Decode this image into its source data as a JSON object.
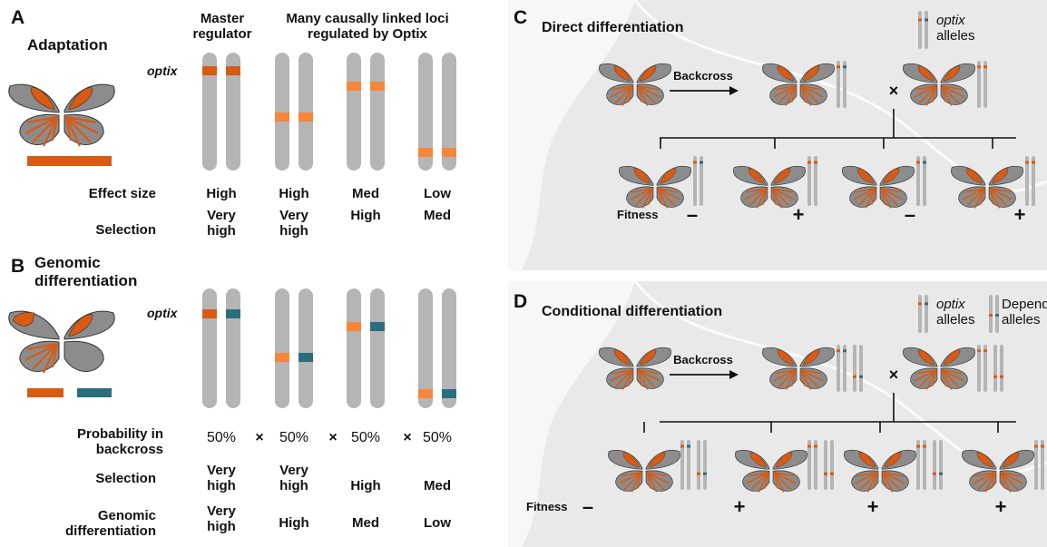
{
  "panel_a": {
    "label": "A",
    "title": "Adaptation",
    "header_master": "Master regulator",
    "header_many": "Many causally linked loci regulated by Optix",
    "gene": "optix",
    "rows": [
      {
        "label": "Effect size",
        "values": [
          "High",
          "High",
          "Med",
          "Low"
        ]
      },
      {
        "label": "Selection",
        "values": [
          "Very high",
          "Very high",
          "High",
          "Med"
        ]
      }
    ]
  },
  "panel_b": {
    "label": "B",
    "title": "Genomic differentiation",
    "gene": "optix",
    "probability_label": "Probability in backcross",
    "probabilities": [
      "50%",
      "50%",
      "50%",
      "50%"
    ],
    "times": [
      "×",
      "×",
      "×"
    ],
    "rows": [
      {
        "label": "Selection",
        "values": [
          "Very high",
          "Very high",
          "High",
          "Med"
        ]
      },
      {
        "label": "Genomic differentiation",
        "values": [
          "Very high",
          "High",
          "Med",
          "Low"
        ]
      }
    ]
  },
  "panel_c": {
    "label": "C",
    "title": "Direct differentiation",
    "legend": [
      {
        "gene": "optix",
        "text": "alleles"
      }
    ],
    "arrow": "Backcross",
    "cross": "×",
    "fitness_label": "Fitness",
    "fitness": [
      "–",
      "+",
      "–",
      "+"
    ]
  },
  "panel_d": {
    "label": "D",
    "title": "Conditional differentiation",
    "legend": [
      {
        "gene": "optix",
        "text": "alleles"
      },
      {
        "text": "Dependent alleles"
      }
    ],
    "arrow": "Backcross",
    "cross": "×",
    "fitness_label": "Fitness",
    "fitness": [
      "–",
      "+",
      "+",
      "+"
    ]
  }
}
